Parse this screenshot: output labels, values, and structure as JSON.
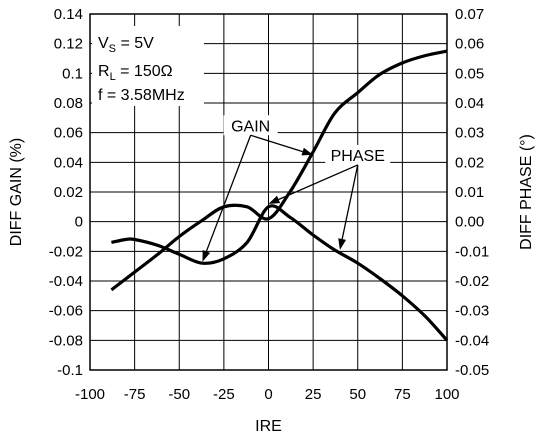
{
  "chart_data": {
    "type": "line",
    "xlabel": "IRE",
    "ylabel_left": "DIFF GAIN (%)",
    "ylabel_right": "DIFF PHASE (°)",
    "xlim": [
      -100,
      100
    ],
    "ylim_left": [
      -0.1,
      0.14
    ],
    "ylim_right": [
      -0.05,
      0.07
    ],
    "grid": true,
    "x_ticks": [
      "-100",
      "-75",
      "-50",
      "-25",
      "0",
      "25",
      "50",
      "75",
      "100"
    ],
    "y_ticks_left": [
      "0.14",
      "0.12",
      "0.1",
      "0.08",
      "0.06",
      "0.04",
      "0.02",
      "0",
      "-0.02",
      "-0.04",
      "-0.06",
      "-0.08",
      "-0.1"
    ],
    "y_ticks_right": [
      "0.07",
      "0.06",
      "0.05",
      "0.04",
      "0.03",
      "0.02",
      "0.01",
      "0.00",
      "-0.01",
      "-0.02",
      "-0.03",
      "-0.04",
      "-0.05"
    ],
    "conditions": {
      "vs": {
        "main": "V",
        "sub": "S",
        "rest": " = 5V"
      },
      "rl": {
        "main": "R",
        "sub": "L",
        "rest": " = 150Ω"
      },
      "freq": "f = 3.58MHz"
    },
    "series": [
      {
        "name": "GAIN",
        "axis": "left",
        "x": [
          -88,
          -75,
          -62,
          -50,
          -37,
          -25,
          -12,
          0,
          12,
          25,
          37,
          50,
          62,
          75,
          88,
          100
        ],
        "y": [
          -0.046,
          -0.034,
          -0.022,
          -0.01,
          0.001,
          0.01,
          0.01,
          0.002,
          0.02,
          0.047,
          0.073,
          0.087,
          0.099,
          0.107,
          0.112,
          0.115
        ]
      },
      {
        "name": "PHASE",
        "axis": "right",
        "x": [
          -88,
          -80,
          -75,
          -62,
          -50,
          -37,
          -25,
          -12,
          0,
          12,
          25,
          37,
          50,
          62,
          75,
          88,
          100
        ],
        "y": [
          -0.007,
          -0.006,
          -0.006,
          -0.008,
          -0.011,
          -0.014,
          -0.0125,
          -0.007,
          0.005,
          0.0015,
          -0.0045,
          -0.0095,
          -0.014,
          -0.019,
          -0.025,
          -0.032,
          -0.04
        ]
      }
    ],
    "annotations": [
      {
        "text": "GAIN",
        "label_x": -10,
        "label_y": 0.065,
        "targets": [
          [
            -37,
            -0.027
          ],
          [
            25,
            0.045
          ]
        ]
      },
      {
        "text": "PHASE",
        "label_x": 50,
        "label_y": 0.045,
        "targets": [
          [
            40,
            -0.019
          ],
          [
            0,
            0.012
          ]
        ]
      }
    ]
  }
}
